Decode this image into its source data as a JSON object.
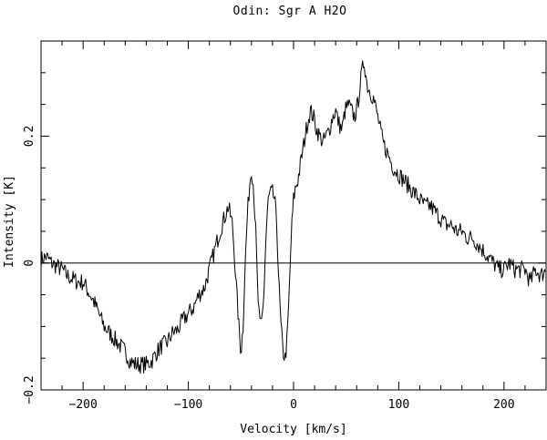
{
  "chart_data": {
    "type": "line",
    "title": "Odin:  Sgr A  H2O",
    "xlabel": "Velocity  [km/s]",
    "ylabel": "Intensity [K]",
    "xlim": [
      -240,
      240
    ],
    "ylim": [
      -0.2,
      0.35
    ],
    "x_ticks": [
      -200,
      -100,
      0,
      100,
      200
    ],
    "x_tick_labels": [
      "−200",
      "−100",
      "0",
      "100",
      "200"
    ],
    "y_ticks": [
      -0.2,
      0,
      0.2
    ],
    "y_tick_labels": [
      "−0.2",
      "0",
      "0.2"
    ],
    "zero_line": 0,
    "grid": false,
    "line_color": "#000000",
    "series": [
      {
        "x": [
          -240,
          -235,
          -230,
          -225,
          -220,
          -215,
          -210,
          -205,
          -200,
          -195,
          -190,
          -185,
          -180,
          -175,
          -170,
          -165,
          -160,
          -155,
          -150,
          -145,
          -140,
          -135,
          -130,
          -125,
          -120,
          -115,
          -110,
          -105,
          -100,
          -95,
          -90,
          -85,
          -80,
          -75,
          -70,
          -66,
          -62,
          -58,
          -55,
          -52,
          -50,
          -48,
          -46,
          -44,
          -42,
          -40,
          -38,
          -36,
          -34,
          -32,
          -30,
          -28,
          -26,
          -24,
          -22,
          -20,
          -18,
          -16,
          -14,
          -12,
          -10,
          -8,
          -6,
          -4,
          -2,
          0,
          2,
          4,
          6,
          8,
          10,
          13,
          16,
          19,
          22,
          25,
          28,
          31,
          34,
          37,
          40,
          43,
          46,
          49,
          52,
          55,
          58,
          61,
          64,
          67,
          70,
          73,
          76,
          80,
          85,
          90,
          95,
          100,
          105,
          110,
          115,
          120,
          125,
          130,
          135,
          140,
          145,
          150,
          155,
          160,
          165,
          170,
          175,
          180,
          185,
          190,
          195,
          200,
          205,
          210,
          215,
          220,
          225,
          230,
          235,
          240
        ],
        "y": [
          0.005,
          0.01,
          0.0,
          -0.005,
          -0.01,
          -0.02,
          -0.025,
          -0.03,
          -0.03,
          -0.045,
          -0.06,
          -0.08,
          -0.1,
          -0.11,
          -0.12,
          -0.13,
          -0.14,
          -0.155,
          -0.16,
          -0.16,
          -0.16,
          -0.155,
          -0.14,
          -0.13,
          -0.125,
          -0.11,
          -0.105,
          -0.09,
          -0.08,
          -0.07,
          -0.05,
          -0.04,
          -0.01,
          0.02,
          0.05,
          0.07,
          0.09,
          0.06,
          -0.02,
          -0.1,
          -0.14,
          -0.1,
          0.0,
          0.07,
          0.12,
          0.15,
          0.12,
          0.05,
          -0.05,
          -0.1,
          -0.09,
          -0.04,
          0.05,
          0.1,
          0.11,
          0.11,
          0.1,
          0.06,
          -0.03,
          -0.1,
          -0.14,
          -0.15,
          -0.12,
          -0.04,
          0.05,
          0.1,
          0.12,
          0.13,
          0.15,
          0.17,
          0.19,
          0.22,
          0.24,
          0.23,
          0.21,
          0.2,
          0.19,
          0.2,
          0.21,
          0.23,
          0.24,
          0.22,
          0.21,
          0.24,
          0.25,
          0.24,
          0.23,
          0.25,
          0.29,
          0.32,
          0.28,
          0.27,
          0.26,
          0.23,
          0.19,
          0.17,
          0.15,
          0.14,
          0.13,
          0.12,
          0.11,
          0.1,
          0.09,
          0.09,
          0.08,
          0.07,
          0.06,
          0.06,
          0.05,
          0.05,
          0.04,
          0.04,
          0.03,
          0.02,
          0.01,
          0.0,
          -0.01,
          -0.01,
          0.0,
          -0.01,
          -0.01,
          -0.01,
          -0.03,
          -0.01,
          -0.02,
          -0.01
        ]
      }
    ]
  }
}
